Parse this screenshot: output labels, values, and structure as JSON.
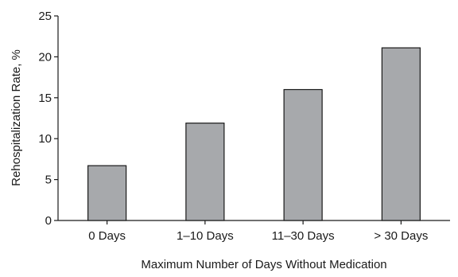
{
  "chart_data": {
    "type": "bar",
    "categories": [
      "0 Days",
      "1–10 Days",
      "11–30 Days",
      "> 30 Days"
    ],
    "values": [
      6.7,
      11.9,
      16.0,
      21.1
    ],
    "title": "",
    "xlabel": "Maximum Number of Days Without Medication",
    "ylabel": "Rehospitalization Rate, %",
    "ylim": [
      0,
      25
    ],
    "yticks": [
      0,
      5,
      10,
      15,
      20,
      25
    ],
    "grid": false,
    "legend": "none",
    "bar_color": "#a7a9ac",
    "axis_color": "#1a1a1a"
  }
}
